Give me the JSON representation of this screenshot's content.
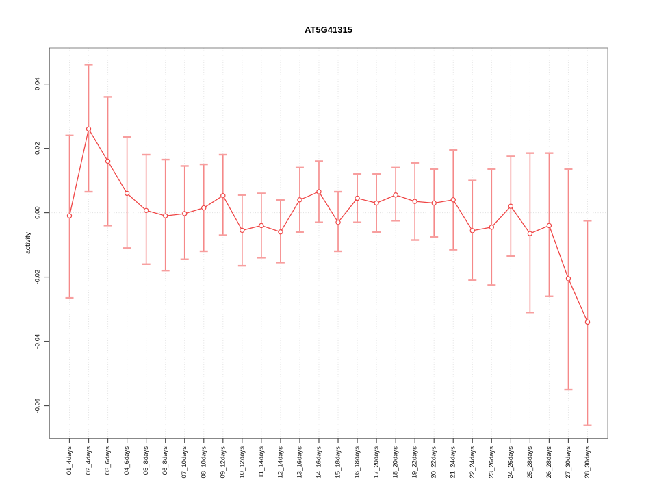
{
  "figure": {
    "title": "AT5G41315",
    "ylabel": "activity"
  },
  "chart_data": {
    "type": "line",
    "title": "AT5G41315",
    "xlabel": "",
    "ylabel": "activity",
    "legend": "none",
    "grid": "vertical dotted gridlines at each category; dotted horizontal line at y=0",
    "ylim": [
      -0.0701,
      0.0512
    ],
    "yticks": [
      0.04,
      0.02,
      0.0,
      -0.02,
      -0.04,
      -0.06
    ],
    "ytick_labels": [
      "0.04",
      "0.02",
      "0.00",
      "-0.02",
      "-0.04",
      "-0.06"
    ],
    "categories": [
      "01_4days",
      "02_4days",
      "03_6days",
      "04_6days",
      "05_8days",
      "06_8days",
      "07_10days",
      "08_10days",
      "09_12days",
      "10_12days",
      "11_14days",
      "12_14days",
      "13_16days",
      "14_16days",
      "15_18days",
      "16_18days",
      "17_20days",
      "18_20days",
      "19_22days",
      "20_22days",
      "21_24days",
      "22_24days",
      "23_26days",
      "24_26days",
      "25_28days",
      "26_28days",
      "27_30days",
      "28_30days"
    ],
    "series": [
      {
        "name": "activity",
        "marker": "open-circle",
        "values": [
          -0.001,
          0.026,
          0.016,
          0.006,
          0.0007,
          -0.001,
          -0.0003,
          0.0015,
          0.0053,
          -0.0055,
          -0.004,
          -0.006,
          0.004,
          0.0065,
          -0.003,
          0.0045,
          0.003,
          0.0055,
          0.0035,
          0.003,
          0.004,
          -0.0056,
          -0.0045,
          0.002,
          -0.0065,
          -0.004,
          -0.0205,
          -0.034
        ],
        "lower": [
          -0.0265,
          0.0065,
          -0.004,
          -0.011,
          -0.016,
          -0.018,
          -0.0145,
          -0.012,
          -0.007,
          -0.0165,
          -0.014,
          -0.0155,
          -0.006,
          -0.003,
          -0.012,
          -0.003,
          -0.006,
          -0.0025,
          -0.0085,
          -0.0075,
          -0.0115,
          -0.021,
          -0.0225,
          -0.0135,
          -0.031,
          -0.026,
          -0.055,
          -0.066
        ],
        "upper": [
          0.024,
          0.046,
          0.036,
          0.0235,
          0.018,
          0.0165,
          0.0145,
          0.015,
          0.018,
          0.0055,
          0.006,
          0.004,
          0.014,
          0.016,
          0.0065,
          0.012,
          0.012,
          0.014,
          0.0155,
          0.0135,
          0.0195,
          0.01,
          0.0135,
          0.0175,
          0.0185,
          0.0185,
          0.0135,
          -0.0025
        ]
      }
    ],
    "colors": {
      "line": "#ef4545",
      "marker_stroke": "#ef4545",
      "marker_fill": "#ffffff",
      "errorbar": "#f58989",
      "errorbar_cap": "#f79e9e",
      "grid": "#e3e3e3",
      "zero_line": "#e0e0e0",
      "box": "#999999",
      "axis": "#4d4d4d",
      "tick_text": "#111111",
      "background": "#ffffff"
    }
  }
}
